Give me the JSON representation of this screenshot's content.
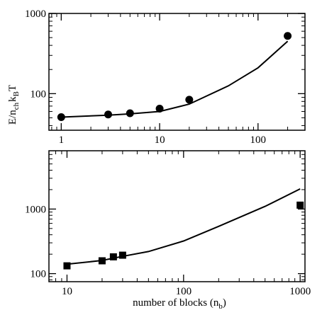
{
  "chart_data": [
    {
      "type": "scatter",
      "title": "",
      "xscale": "log",
      "yscale": "log",
      "xlim": [
        0.75,
        300
      ],
      "ylim": [
        35,
        1000
      ],
      "grid": false,
      "x_tick_labels": [
        "1",
        "10",
        "100"
      ],
      "y_tick_labels": [
        "100",
        "1000"
      ],
      "series": [
        {
          "kind": "points",
          "marker": "circle",
          "x": [
            1,
            3,
            5,
            10,
            20,
            200
          ],
          "y": [
            51,
            55,
            57,
            65,
            84,
            525
          ]
        },
        {
          "kind": "line",
          "x": [
            1,
            3,
            5,
            10,
            20,
            50,
            100,
            200
          ],
          "y": [
            51,
            54,
            56,
            60,
            74,
            125,
            210,
            450
          ]
        }
      ]
    },
    {
      "type": "scatter",
      "title": "",
      "xscale": "log",
      "yscale": "log",
      "xlim": [
        7,
        1100
      ],
      "ylim": [
        75,
        8000
      ],
      "grid": false,
      "xlabel": "number of blocks (n",
      "xlabel_sub": "b",
      "xlabel_end": ")",
      "x_tick_labels": [
        "10",
        "100",
        "1000"
      ],
      "y_tick_labels": [
        "100",
        "1000"
      ],
      "series": [
        {
          "kind": "points",
          "marker": "square",
          "x": [
            10,
            20,
            25,
            30,
            1000
          ],
          "y": [
            132,
            158,
            182,
            193,
            1150
          ]
        },
        {
          "kind": "line",
          "x": [
            10,
            20,
            30,
            50,
            100,
            200,
            500,
            1000
          ],
          "y": [
            140,
            160,
            185,
            220,
            320,
            540,
            1100,
            2050
          ]
        }
      ]
    }
  ],
  "shared_ylabel": {
    "main": "E/n",
    "sub1": "ch",
    "mid": "k",
    "sub2": "B",
    "end": "T"
  }
}
